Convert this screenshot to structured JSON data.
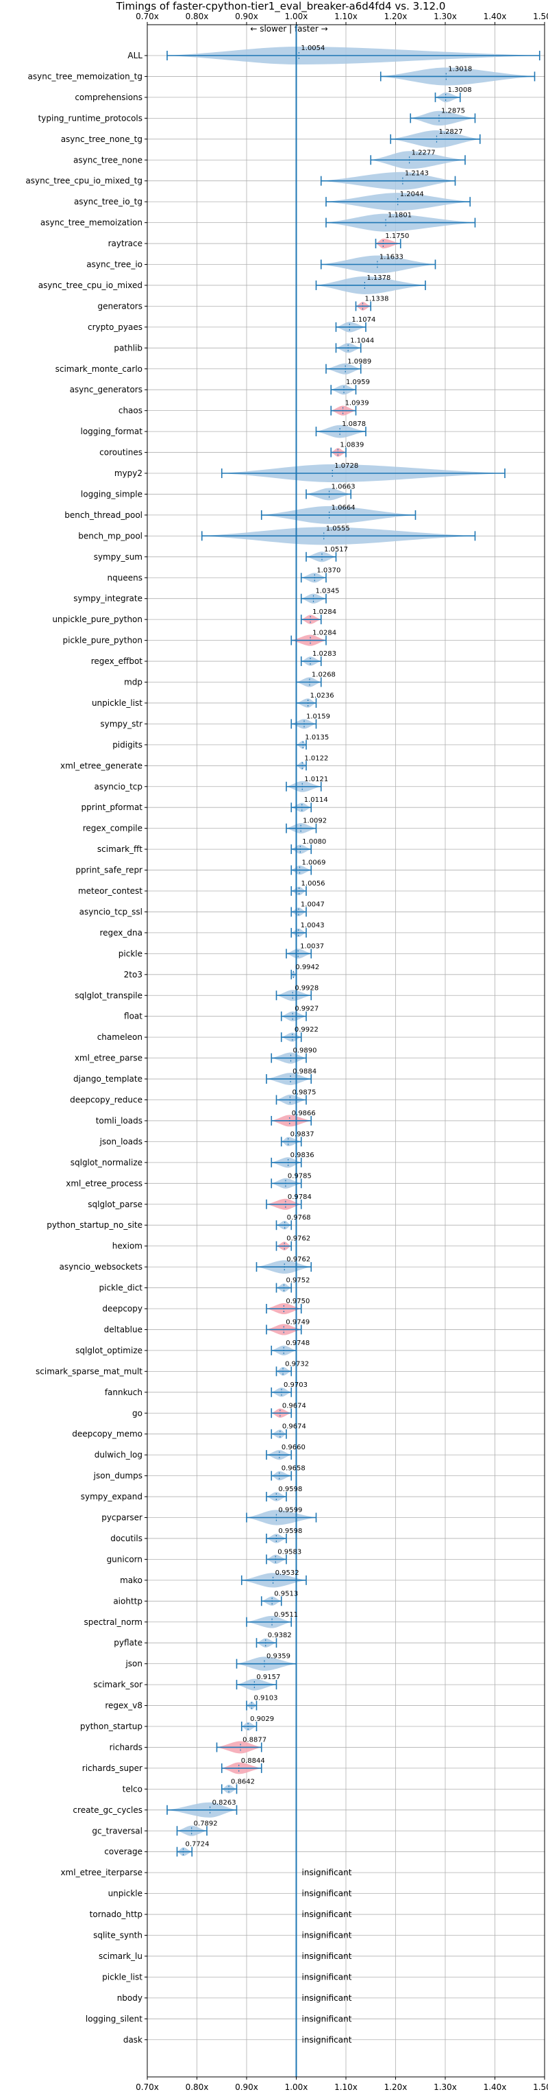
{
  "chart_data": {
    "type": "violin",
    "title": "Timings of faster-cpython-tier1_eval_breaker-a6d4fd4 vs. 3.12.0",
    "direction_label": "← slower | faster →",
    "insignificant_label": "insignificant",
    "xlim": [
      0.7,
      1.5
    ],
    "xticks": [
      "0.70x",
      "0.80x",
      "0.90x",
      "1.00x",
      "1.10x",
      "1.20x",
      "1.30x",
      "1.40x",
      "1.50x"
    ],
    "xtick_values": [
      0.7,
      0.8,
      0.9,
      1.0,
      1.1,
      1.2,
      1.3,
      1.4,
      1.5
    ],
    "reference_x": 1.0,
    "grid": true,
    "colors": {
      "violin": "#aac9e4",
      "violin_highlight": "#f4a3b0",
      "line": "#1f77b4",
      "grid": "#b0b0b0",
      "axis": "#000000"
    },
    "benchmarks": [
      {
        "name": "ALL",
        "label": "1.0054",
        "mean": 1.0054,
        "min": 0.74,
        "max": 1.49,
        "hl": false,
        "sig": true
      },
      {
        "name": "async_tree_memoization_tg",
        "label": "1.3018",
        "mean": 1.3018,
        "min": 1.17,
        "max": 1.48,
        "hl": false,
        "sig": true
      },
      {
        "name": "comprehensions",
        "label": "1.3008",
        "mean": 1.3008,
        "min": 1.28,
        "max": 1.33,
        "hl": false,
        "sig": true
      },
      {
        "name": "typing_runtime_protocols",
        "label": "1.2875",
        "mean": 1.2875,
        "min": 1.23,
        "max": 1.36,
        "hl": false,
        "sig": true
      },
      {
        "name": "async_tree_none_tg",
        "label": "1.2827",
        "mean": 1.2827,
        "min": 1.19,
        "max": 1.37,
        "hl": false,
        "sig": true
      },
      {
        "name": "async_tree_none",
        "label": "1.2277",
        "mean": 1.2277,
        "min": 1.15,
        "max": 1.34,
        "hl": false,
        "sig": true
      },
      {
        "name": "async_tree_cpu_io_mixed_tg",
        "label": "1.2143",
        "mean": 1.2143,
        "min": 1.05,
        "max": 1.32,
        "hl": false,
        "sig": true
      },
      {
        "name": "async_tree_io_tg",
        "label": "1.2044",
        "mean": 1.2044,
        "min": 1.06,
        "max": 1.35,
        "hl": false,
        "sig": true
      },
      {
        "name": "async_tree_memoization",
        "label": "1.1801",
        "mean": 1.1801,
        "min": 1.06,
        "max": 1.36,
        "hl": false,
        "sig": true
      },
      {
        "name": "raytrace",
        "label": "1.1750",
        "mean": 1.175,
        "min": 1.16,
        "max": 1.21,
        "hl": true,
        "sig": true
      },
      {
        "name": "async_tree_io",
        "label": "1.1633",
        "mean": 1.1633,
        "min": 1.05,
        "max": 1.28,
        "hl": false,
        "sig": true
      },
      {
        "name": "async_tree_cpu_io_mixed",
        "label": "1.1378",
        "mean": 1.1378,
        "min": 1.04,
        "max": 1.26,
        "hl": false,
        "sig": true
      },
      {
        "name": "generators",
        "label": "1.1338",
        "mean": 1.1338,
        "min": 1.12,
        "max": 1.15,
        "hl": true,
        "sig": true
      },
      {
        "name": "crypto_pyaes",
        "label": "1.1074",
        "mean": 1.1074,
        "min": 1.08,
        "max": 1.14,
        "hl": false,
        "sig": true
      },
      {
        "name": "pathlib",
        "label": "1.1044",
        "mean": 1.1044,
        "min": 1.08,
        "max": 1.13,
        "hl": false,
        "sig": true
      },
      {
        "name": "scimark_monte_carlo",
        "label": "1.0989",
        "mean": 1.0989,
        "min": 1.06,
        "max": 1.13,
        "hl": false,
        "sig": true
      },
      {
        "name": "async_generators",
        "label": "1.0959",
        "mean": 1.0959,
        "min": 1.07,
        "max": 1.12,
        "hl": false,
        "sig": true
      },
      {
        "name": "chaos",
        "label": "1.0939",
        "mean": 1.0939,
        "min": 1.07,
        "max": 1.12,
        "hl": true,
        "sig": true
      },
      {
        "name": "logging_format",
        "label": "1.0878",
        "mean": 1.0878,
        "min": 1.04,
        "max": 1.14,
        "hl": false,
        "sig": true
      },
      {
        "name": "coroutines",
        "label": "1.0839",
        "mean": 1.0839,
        "min": 1.07,
        "max": 1.1,
        "hl": true,
        "sig": true
      },
      {
        "name": "mypy2",
        "label": "1.0728",
        "mean": 1.0728,
        "min": 0.85,
        "max": 1.42,
        "hl": false,
        "sig": true
      },
      {
        "name": "logging_simple",
        "label": "1.0663",
        "mean": 1.0663,
        "min": 1.02,
        "max": 1.11,
        "hl": false,
        "sig": true
      },
      {
        "name": "bench_thread_pool",
        "label": "1.0664",
        "mean": 1.0664,
        "min": 0.93,
        "max": 1.24,
        "hl": false,
        "sig": true
      },
      {
        "name": "bench_mp_pool",
        "label": "1.0555",
        "mean": 1.0555,
        "min": 0.81,
        "max": 1.36,
        "hl": false,
        "sig": true
      },
      {
        "name": "sympy_sum",
        "label": "1.0517",
        "mean": 1.0517,
        "min": 1.02,
        "max": 1.08,
        "hl": false,
        "sig": true
      },
      {
        "name": "nqueens",
        "label": "1.0370",
        "mean": 1.037,
        "min": 1.01,
        "max": 1.06,
        "hl": false,
        "sig": true
      },
      {
        "name": "sympy_integrate",
        "label": "1.0345",
        "mean": 1.0345,
        "min": 1.01,
        "max": 1.06,
        "hl": false,
        "sig": true
      },
      {
        "name": "unpickle_pure_python",
        "label": "1.0284",
        "mean": 1.0284,
        "min": 1.01,
        "max": 1.05,
        "hl": true,
        "sig": true
      },
      {
        "name": "pickle_pure_python",
        "label": "1.0284",
        "mean": 1.0284,
        "min": 0.99,
        "max": 1.06,
        "hl": true,
        "sig": true
      },
      {
        "name": "regex_effbot",
        "label": "1.0283",
        "mean": 1.0283,
        "min": 1.01,
        "max": 1.05,
        "hl": false,
        "sig": true
      },
      {
        "name": "mdp",
        "label": "1.0268",
        "mean": 1.0268,
        "min": 1.0,
        "max": 1.05,
        "hl": false,
        "sig": true
      },
      {
        "name": "unpickle_list",
        "label": "1.0236",
        "mean": 1.0236,
        "min": 1.0,
        "max": 1.04,
        "hl": false,
        "sig": true
      },
      {
        "name": "sympy_str",
        "label": "1.0159",
        "mean": 1.0159,
        "min": 0.99,
        "max": 1.04,
        "hl": false,
        "sig": true
      },
      {
        "name": "pidigits",
        "label": "1.0135",
        "mean": 1.0135,
        "min": 1.0,
        "max": 1.02,
        "hl": false,
        "sig": true
      },
      {
        "name": "xml_etree_generate",
        "label": "1.0122",
        "mean": 1.0122,
        "min": 1.0,
        "max": 1.02,
        "hl": false,
        "sig": true
      },
      {
        "name": "asyncio_tcp",
        "label": "1.0121",
        "mean": 1.0121,
        "min": 0.98,
        "max": 1.05,
        "hl": false,
        "sig": true
      },
      {
        "name": "pprint_pformat",
        "label": "1.0114",
        "mean": 1.0114,
        "min": 0.99,
        "max": 1.03,
        "hl": false,
        "sig": true
      },
      {
        "name": "regex_compile",
        "label": "1.0092",
        "mean": 1.0092,
        "min": 0.98,
        "max": 1.04,
        "hl": false,
        "sig": true
      },
      {
        "name": "scimark_fft",
        "label": "1.0080",
        "mean": 1.008,
        "min": 0.99,
        "max": 1.03,
        "hl": false,
        "sig": true
      },
      {
        "name": "pprint_safe_repr",
        "label": "1.0069",
        "mean": 1.0069,
        "min": 0.99,
        "max": 1.03,
        "hl": false,
        "sig": true
      },
      {
        "name": "meteor_contest",
        "label": "1.0056",
        "mean": 1.0056,
        "min": 0.99,
        "max": 1.02,
        "hl": false,
        "sig": true
      },
      {
        "name": "asyncio_tcp_ssl",
        "label": "1.0047",
        "mean": 1.0047,
        "min": 0.99,
        "max": 1.02,
        "hl": false,
        "sig": true
      },
      {
        "name": "regex_dna",
        "label": "1.0043",
        "mean": 1.0043,
        "min": 0.99,
        "max": 1.02,
        "hl": false,
        "sig": true
      },
      {
        "name": "pickle",
        "label": "1.0037",
        "mean": 1.0037,
        "min": 0.98,
        "max": 1.03,
        "hl": false,
        "sig": true
      },
      {
        "name": "2to3",
        "label": "0.9942",
        "mean": 0.9942,
        "min": 0.99,
        "max": 1.0,
        "hl": false,
        "sig": true
      },
      {
        "name": "sqlglot_transpile",
        "label": "0.9928",
        "mean": 0.9928,
        "min": 0.96,
        "max": 1.03,
        "hl": false,
        "sig": true
      },
      {
        "name": "float",
        "label": "0.9927",
        "mean": 0.9927,
        "min": 0.97,
        "max": 1.02,
        "hl": false,
        "sig": true
      },
      {
        "name": "chameleon",
        "label": "0.9922",
        "mean": 0.9922,
        "min": 0.97,
        "max": 1.01,
        "hl": false,
        "sig": true
      },
      {
        "name": "xml_etree_parse",
        "label": "0.9890",
        "mean": 0.989,
        "min": 0.95,
        "max": 1.02,
        "hl": false,
        "sig": true
      },
      {
        "name": "django_template",
        "label": "0.9884",
        "mean": 0.9884,
        "min": 0.94,
        "max": 1.03,
        "hl": false,
        "sig": true
      },
      {
        "name": "deepcopy_reduce",
        "label": "0.9875",
        "mean": 0.9875,
        "min": 0.96,
        "max": 1.02,
        "hl": false,
        "sig": true
      },
      {
        "name": "tomli_loads",
        "label": "0.9866",
        "mean": 0.9866,
        "min": 0.95,
        "max": 1.03,
        "hl": true,
        "sig": true
      },
      {
        "name": "json_loads",
        "label": "0.9837",
        "mean": 0.9837,
        "min": 0.97,
        "max": 1.01,
        "hl": false,
        "sig": true
      },
      {
        "name": "sqlglot_normalize",
        "label": "0.9836",
        "mean": 0.9836,
        "min": 0.95,
        "max": 1.01,
        "hl": false,
        "sig": true
      },
      {
        "name": "xml_etree_process",
        "label": "0.9785",
        "mean": 0.9785,
        "min": 0.95,
        "max": 1.01,
        "hl": false,
        "sig": true
      },
      {
        "name": "sqlglot_parse",
        "label": "0.9784",
        "mean": 0.9784,
        "min": 0.94,
        "max": 1.01,
        "hl": true,
        "sig": true
      },
      {
        "name": "python_startup_no_site",
        "label": "0.9768",
        "mean": 0.9768,
        "min": 0.96,
        "max": 0.99,
        "hl": false,
        "sig": true
      },
      {
        "name": "hexiom",
        "label": "0.9762",
        "mean": 0.9762,
        "min": 0.96,
        "max": 0.99,
        "hl": true,
        "sig": true
      },
      {
        "name": "asyncio_websockets",
        "label": "0.9762",
        "mean": 0.9762,
        "min": 0.92,
        "max": 1.03,
        "hl": false,
        "sig": true
      },
      {
        "name": "pickle_dict",
        "label": "0.9752",
        "mean": 0.9752,
        "min": 0.96,
        "max": 0.99,
        "hl": false,
        "sig": true
      },
      {
        "name": "deepcopy",
        "label": "0.9750",
        "mean": 0.975,
        "min": 0.94,
        "max": 1.01,
        "hl": true,
        "sig": true
      },
      {
        "name": "deltablue",
        "label": "0.9749",
        "mean": 0.9749,
        "min": 0.94,
        "max": 1.01,
        "hl": true,
        "sig": true
      },
      {
        "name": "sqlglot_optimize",
        "label": "0.9748",
        "mean": 0.9748,
        "min": 0.95,
        "max": 1.0,
        "hl": false,
        "sig": true
      },
      {
        "name": "scimark_sparse_mat_mult",
        "label": "0.9732",
        "mean": 0.9732,
        "min": 0.96,
        "max": 0.99,
        "hl": false,
        "sig": true
      },
      {
        "name": "fannkuch",
        "label": "0.9703",
        "mean": 0.9703,
        "min": 0.95,
        "max": 0.99,
        "hl": false,
        "sig": true
      },
      {
        "name": "go",
        "label": "0.9674",
        "mean": 0.9674,
        "min": 0.95,
        "max": 0.99,
        "hl": true,
        "sig": true
      },
      {
        "name": "deepcopy_memo",
        "label": "0.9674",
        "mean": 0.9674,
        "min": 0.95,
        "max": 0.98,
        "hl": false,
        "sig": true
      },
      {
        "name": "dulwich_log",
        "label": "0.9660",
        "mean": 0.966,
        "min": 0.94,
        "max": 0.99,
        "hl": false,
        "sig": true
      },
      {
        "name": "json_dumps",
        "label": "0.9658",
        "mean": 0.9658,
        "min": 0.95,
        "max": 0.99,
        "hl": false,
        "sig": true
      },
      {
        "name": "sympy_expand",
        "label": "0.9598",
        "mean": 0.9598,
        "min": 0.94,
        "max": 0.98,
        "hl": false,
        "sig": true
      },
      {
        "name": "pycparser",
        "label": "0.9599",
        "mean": 0.9599,
        "min": 0.9,
        "max": 1.04,
        "hl": false,
        "sig": true
      },
      {
        "name": "docutils",
        "label": "0.9598",
        "mean": 0.9598,
        "min": 0.94,
        "max": 0.98,
        "hl": false,
        "sig": true
      },
      {
        "name": "gunicorn",
        "label": "0.9583",
        "mean": 0.9583,
        "min": 0.94,
        "max": 0.98,
        "hl": false,
        "sig": true
      },
      {
        "name": "mako",
        "label": "0.9532",
        "mean": 0.9532,
        "min": 0.89,
        "max": 1.02,
        "hl": false,
        "sig": true
      },
      {
        "name": "aiohttp",
        "label": "0.9513",
        "mean": 0.9513,
        "min": 0.93,
        "max": 0.97,
        "hl": false,
        "sig": true
      },
      {
        "name": "spectral_norm",
        "label": "0.9511",
        "mean": 0.9511,
        "min": 0.9,
        "max": 0.99,
        "hl": false,
        "sig": true
      },
      {
        "name": "pyflate",
        "label": "0.9382",
        "mean": 0.9382,
        "min": 0.92,
        "max": 0.96,
        "hl": false,
        "sig": true
      },
      {
        "name": "json",
        "label": "0.9359",
        "mean": 0.9359,
        "min": 0.88,
        "max": 1.0,
        "hl": false,
        "sig": true
      },
      {
        "name": "scimark_sor",
        "label": "0.9157",
        "mean": 0.9157,
        "min": 0.88,
        "max": 0.96,
        "hl": false,
        "sig": true
      },
      {
        "name": "regex_v8",
        "label": "0.9103",
        "mean": 0.9103,
        "min": 0.9,
        "max": 0.92,
        "hl": false,
        "sig": true
      },
      {
        "name": "python_startup",
        "label": "0.9029",
        "mean": 0.9029,
        "min": 0.89,
        "max": 0.92,
        "hl": false,
        "sig": true
      },
      {
        "name": "richards",
        "label": "0.8877",
        "mean": 0.8877,
        "min": 0.84,
        "max": 0.93,
        "hl": true,
        "sig": true
      },
      {
        "name": "richards_super",
        "label": "0.8844",
        "mean": 0.8844,
        "min": 0.85,
        "max": 0.93,
        "hl": true,
        "sig": true
      },
      {
        "name": "telco",
        "label": "0.8642",
        "mean": 0.8642,
        "min": 0.85,
        "max": 0.88,
        "hl": false,
        "sig": true
      },
      {
        "name": "create_gc_cycles",
        "label": "0.8263",
        "mean": 0.8263,
        "min": 0.74,
        "max": 0.88,
        "hl": false,
        "sig": true
      },
      {
        "name": "gc_traversal",
        "label": "0.7892",
        "mean": 0.7892,
        "min": 0.76,
        "max": 0.82,
        "hl": false,
        "sig": true
      },
      {
        "name": "coverage",
        "label": "0.7724",
        "mean": 0.7724,
        "min": 0.76,
        "max": 0.79,
        "hl": false,
        "sig": true
      },
      {
        "name": "xml_etree_iterparse",
        "label": "",
        "mean": 1.0,
        "min": 1.0,
        "max": 1.0,
        "hl": false,
        "sig": false
      },
      {
        "name": "unpickle",
        "label": "",
        "mean": 1.0,
        "min": 1.0,
        "max": 1.0,
        "hl": false,
        "sig": false
      },
      {
        "name": "tornado_http",
        "label": "",
        "mean": 1.0,
        "min": 1.0,
        "max": 1.0,
        "hl": false,
        "sig": false
      },
      {
        "name": "sqlite_synth",
        "label": "",
        "mean": 1.0,
        "min": 1.0,
        "max": 1.0,
        "hl": false,
        "sig": false
      },
      {
        "name": "scimark_lu",
        "label": "",
        "mean": 1.0,
        "min": 1.0,
        "max": 1.0,
        "hl": false,
        "sig": false
      },
      {
        "name": "pickle_list",
        "label": "",
        "mean": 1.0,
        "min": 1.0,
        "max": 1.0,
        "hl": false,
        "sig": false
      },
      {
        "name": "nbody",
        "label": "",
        "mean": 1.0,
        "min": 1.0,
        "max": 1.0,
        "hl": false,
        "sig": false
      },
      {
        "name": "logging_silent",
        "label": "",
        "mean": 1.0,
        "min": 1.0,
        "max": 1.0,
        "hl": false,
        "sig": false
      },
      {
        "name": "dask",
        "label": "",
        "mean": 1.0,
        "min": 1.0,
        "max": 1.0,
        "hl": false,
        "sig": false
      }
    ]
  }
}
